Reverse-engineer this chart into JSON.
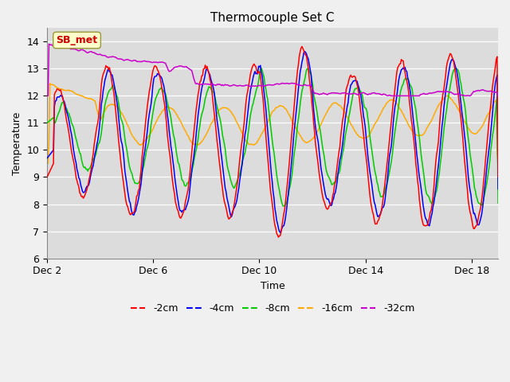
{
  "title": "Thermocouple Set C",
  "xlabel": "Time",
  "ylabel": "Temperature",
  "ylim": [
    6.0,
    14.5
  ],
  "yticks": [
    6.0,
    7.0,
    8.0,
    9.0,
    10.0,
    11.0,
    12.0,
    13.0,
    14.0
  ],
  "xtick_positions": [
    0,
    4,
    8,
    12,
    16
  ],
  "xtick_labels": [
    "Dec 2",
    "Dec 6",
    "Dec 10",
    "Dec 14",
    "Dec 18"
  ],
  "xlim": [
    0,
    17
  ],
  "colors": {
    "-2cm": "#ff0000",
    "-4cm": "#0000ff",
    "-8cm": "#00cc00",
    "-16cm": "#ffaa00",
    "-32cm": "#cc00cc"
  },
  "legend_labels": [
    "-2cm",
    "-4cm",
    "-8cm",
    "-16cm",
    "-32cm"
  ],
  "bg_color": "#dcdcdc",
  "fig_bg_color": "#f0f0f0",
  "annotation_text": "SB_met",
  "annotation_color": "#cc0000",
  "annotation_bg": "#ffffcc",
  "title_fontsize": 11,
  "axis_fontsize": 9,
  "legend_fontsize": 9,
  "n_points": 500
}
